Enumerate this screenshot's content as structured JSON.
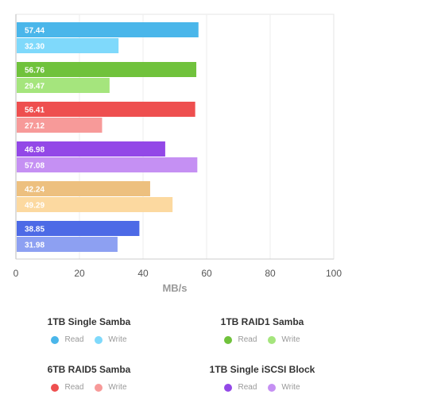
{
  "chart_data": {
    "type": "bar",
    "orientation": "horizontal",
    "xlabel": "MB/s",
    "xlim": [
      0,
      100
    ],
    "xticks": [
      0,
      20,
      40,
      60,
      80,
      100
    ],
    "grid": true,
    "legend_position": "bottom",
    "series": [
      {
        "name": "1TB Single Samba",
        "read": 57.44,
        "write": 32.3,
        "read_color": "#4ab6ea",
        "write_color": "#7fd9fb"
      },
      {
        "name": "1TB RAID1 Samba",
        "read": 56.76,
        "write": 29.47,
        "read_color": "#70c23c",
        "write_color": "#a5e57d"
      },
      {
        "name": "6TB RAID5 Samba",
        "read": 56.41,
        "write": 27.12,
        "read_color": "#ee4f4f",
        "write_color": "#f79a99"
      },
      {
        "name": "1TB Single iSCSI Block",
        "read": 46.98,
        "write": 57.08,
        "read_color": "#9348e7",
        "write_color": "#c590f3"
      },
      {
        "name": "",
        "read": 42.24,
        "write": 49.29,
        "read_color": "#edc07f",
        "write_color": "#fcd9a0"
      },
      {
        "name": "",
        "read": 38.85,
        "write": 31.98,
        "read_color": "#4d6ae6",
        "write_color": "#8da0f2"
      }
    ],
    "legend_item_labels": {
      "read": "Read",
      "write": "Write"
    }
  }
}
